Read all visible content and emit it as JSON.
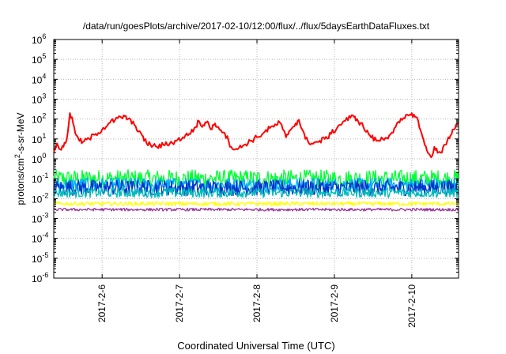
{
  "chart_data": {
    "type": "line",
    "title": "/data/run/goesPlots/archive/2017-02-10/12:00/flux/../flux/5daysEarthDataFluxes.txt",
    "xlabel": "Coordinated Universal Time (UTC)",
    "ylabel": "protons/cm2-s-sr-MeV",
    "ylabel_parts": {
      "pre": "protons/cm",
      "sup": "2",
      "post": "-s-sr-MeV"
    },
    "y_scale": "log",
    "ylim": [
      1e-06,
      1000000.0
    ],
    "x_date_range": [
      "2017-02-05T09:00",
      "2017-02-10T14:30"
    ],
    "y_ticks": [
      {
        "value": 1e-06,
        "base": "10",
        "exp": "-6"
      },
      {
        "value": 1e-05,
        "base": "10",
        "exp": "-5"
      },
      {
        "value": 0.0001,
        "base": "10",
        "exp": "-4"
      },
      {
        "value": 0.001,
        "base": "10",
        "exp": "-3"
      },
      {
        "value": 0.01,
        "base": "10",
        "exp": "-2"
      },
      {
        "value": 0.1,
        "base": "10",
        "exp": "-1"
      },
      {
        "value": 1,
        "base": "10",
        "exp": "0"
      },
      {
        "value": 10.0,
        "base": "10",
        "exp": "1"
      },
      {
        "value": 100.0,
        "base": "10",
        "exp": "2"
      },
      {
        "value": 1000.0,
        "base": "10",
        "exp": "3"
      },
      {
        "value": 10000.0,
        "base": "10",
        "exp": "4"
      },
      {
        "value": 100000.0,
        "base": "10",
        "exp": "5"
      },
      {
        "value": 1000000.0,
        "base": "10",
        "exp": "6"
      }
    ],
    "x_ticks": [
      {
        "date": "2017-02-06",
        "label": "2017-2-6"
      },
      {
        "date": "2017-02-07",
        "label": "2017-2-7"
      },
      {
        "date": "2017-02-08",
        "label": "2017-2-8"
      },
      {
        "date": "2017-02-09",
        "label": "2017-2-9"
      },
      {
        "date": "2017-02-10",
        "label": "2017-2-10"
      }
    ],
    "grid": true,
    "legend": "none",
    "series": [
      {
        "color": "#ff0000",
        "points": [
          [
            "2017-02-05T09:00",
            2
          ],
          [
            "2017-02-05T10:00",
            6
          ],
          [
            "2017-02-05T11:00",
            3
          ],
          [
            "2017-02-05T12:00",
            4
          ],
          [
            "2017-02-05T13:00",
            9
          ],
          [
            "2017-02-05T14:00",
            200
          ],
          [
            "2017-02-05T15:00",
            60
          ],
          [
            "2017-02-05T16:00",
            15
          ],
          [
            "2017-02-05T17:00",
            8
          ],
          [
            "2017-02-05T18:00",
            7
          ],
          [
            "2017-02-05T20:00",
            10
          ],
          [
            "2017-02-05T22:00",
            18
          ],
          [
            "2017-02-06T00:00",
            30
          ],
          [
            "2017-02-06T02:00",
            60
          ],
          [
            "2017-02-06T04:00",
            90
          ],
          [
            "2017-02-06T06:00",
            120
          ],
          [
            "2017-02-06T07:00",
            140
          ],
          [
            "2017-02-06T08:00",
            100
          ],
          [
            "2017-02-06T10:00",
            50
          ],
          [
            "2017-02-06T12:00",
            20
          ],
          [
            "2017-02-06T13:00",
            8
          ],
          [
            "2017-02-06T15:00",
            5
          ],
          [
            "2017-02-06T17:00",
            4
          ],
          [
            "2017-02-06T19:00",
            5
          ],
          [
            "2017-02-06T21:00",
            6
          ],
          [
            "2017-02-06T23:00",
            8
          ],
          [
            "2017-02-07T01:00",
            12
          ],
          [
            "2017-02-07T03:00",
            18
          ],
          [
            "2017-02-07T05:00",
            40
          ],
          [
            "2017-02-07T06:00",
            80
          ],
          [
            "2017-02-07T07:00",
            40
          ],
          [
            "2017-02-07T08:00",
            70
          ],
          [
            "2017-02-07T09:00",
            60
          ],
          [
            "2017-02-07T10:00",
            30
          ],
          [
            "2017-02-07T11:00",
            60
          ],
          [
            "2017-02-07T12:00",
            40
          ],
          [
            "2017-02-07T14:00",
            20
          ],
          [
            "2017-02-07T16:00",
            4
          ],
          [
            "2017-02-07T18:00",
            3
          ],
          [
            "2017-02-07T20:00",
            5
          ],
          [
            "2017-02-07T22:00",
            8
          ],
          [
            "2017-02-08T00:00",
            12
          ],
          [
            "2017-02-08T02:00",
            20
          ],
          [
            "2017-02-08T04:00",
            35
          ],
          [
            "2017-02-08T06:00",
            50
          ],
          [
            "2017-02-08T07:00",
            70
          ],
          [
            "2017-02-08T08:00",
            30
          ],
          [
            "2017-02-08T09:00",
            12
          ],
          [
            "2017-02-08T10:00",
            25
          ],
          [
            "2017-02-08T12:00",
            60
          ],
          [
            "2017-02-08T13:00",
            90
          ],
          [
            "2017-02-08T14:00",
            30
          ],
          [
            "2017-02-08T15:00",
            10
          ],
          [
            "2017-02-08T17:00",
            6
          ],
          [
            "2017-02-08T19:00",
            7
          ],
          [
            "2017-02-08T21:00",
            10
          ],
          [
            "2017-02-08T23:00",
            18
          ],
          [
            "2017-02-09T01:00",
            40
          ],
          [
            "2017-02-09T03:00",
            80
          ],
          [
            "2017-02-09T05:00",
            120
          ],
          [
            "2017-02-09T06:00",
            130
          ],
          [
            "2017-02-09T07:00",
            100
          ],
          [
            "2017-02-09T09:00",
            40
          ],
          [
            "2017-02-09T11:00",
            15
          ],
          [
            "2017-02-09T13:00",
            8
          ],
          [
            "2017-02-09T15:00",
            10
          ],
          [
            "2017-02-09T17:00",
            15
          ],
          [
            "2017-02-09T19:00",
            40
          ],
          [
            "2017-02-09T21:00",
            90
          ],
          [
            "2017-02-09T23:00",
            150
          ],
          [
            "2017-02-10T00:00",
            200
          ],
          [
            "2017-02-10T01:00",
            130
          ],
          [
            "2017-02-10T02:00",
            80
          ],
          [
            "2017-02-10T03:00",
            20
          ],
          [
            "2017-02-10T04:00",
            5
          ],
          [
            "2017-02-10T05:00",
            2
          ],
          [
            "2017-02-10T06:00",
            1.2
          ],
          [
            "2017-02-10T07:00",
            4
          ],
          [
            "2017-02-10T08:00",
            2
          ],
          [
            "2017-02-10T09:00",
            2
          ],
          [
            "2017-02-10T10:00",
            5
          ],
          [
            "2017-02-10T11:00",
            8
          ],
          [
            "2017-02-10T12:00",
            15
          ],
          [
            "2017-02-10T13:00",
            30
          ],
          [
            "2017-02-10T14:30",
            60
          ]
        ]
      },
      {
        "color": "#00ff33",
        "level": 0.1,
        "noise": 0.45
      },
      {
        "color": "#00aaff",
        "level": 0.05,
        "noise": 0.35
      },
      {
        "color": "#0033cc",
        "level": 0.035,
        "noise": 0.4
      },
      {
        "color": "#00bbbb",
        "level": 0.02,
        "noise": 0.25
      },
      {
        "color": "#ffff00",
        "level": 0.0055,
        "noise": 0.1
      },
      {
        "color": "#993399",
        "level": 0.0028,
        "noise": 0.07
      }
    ]
  }
}
